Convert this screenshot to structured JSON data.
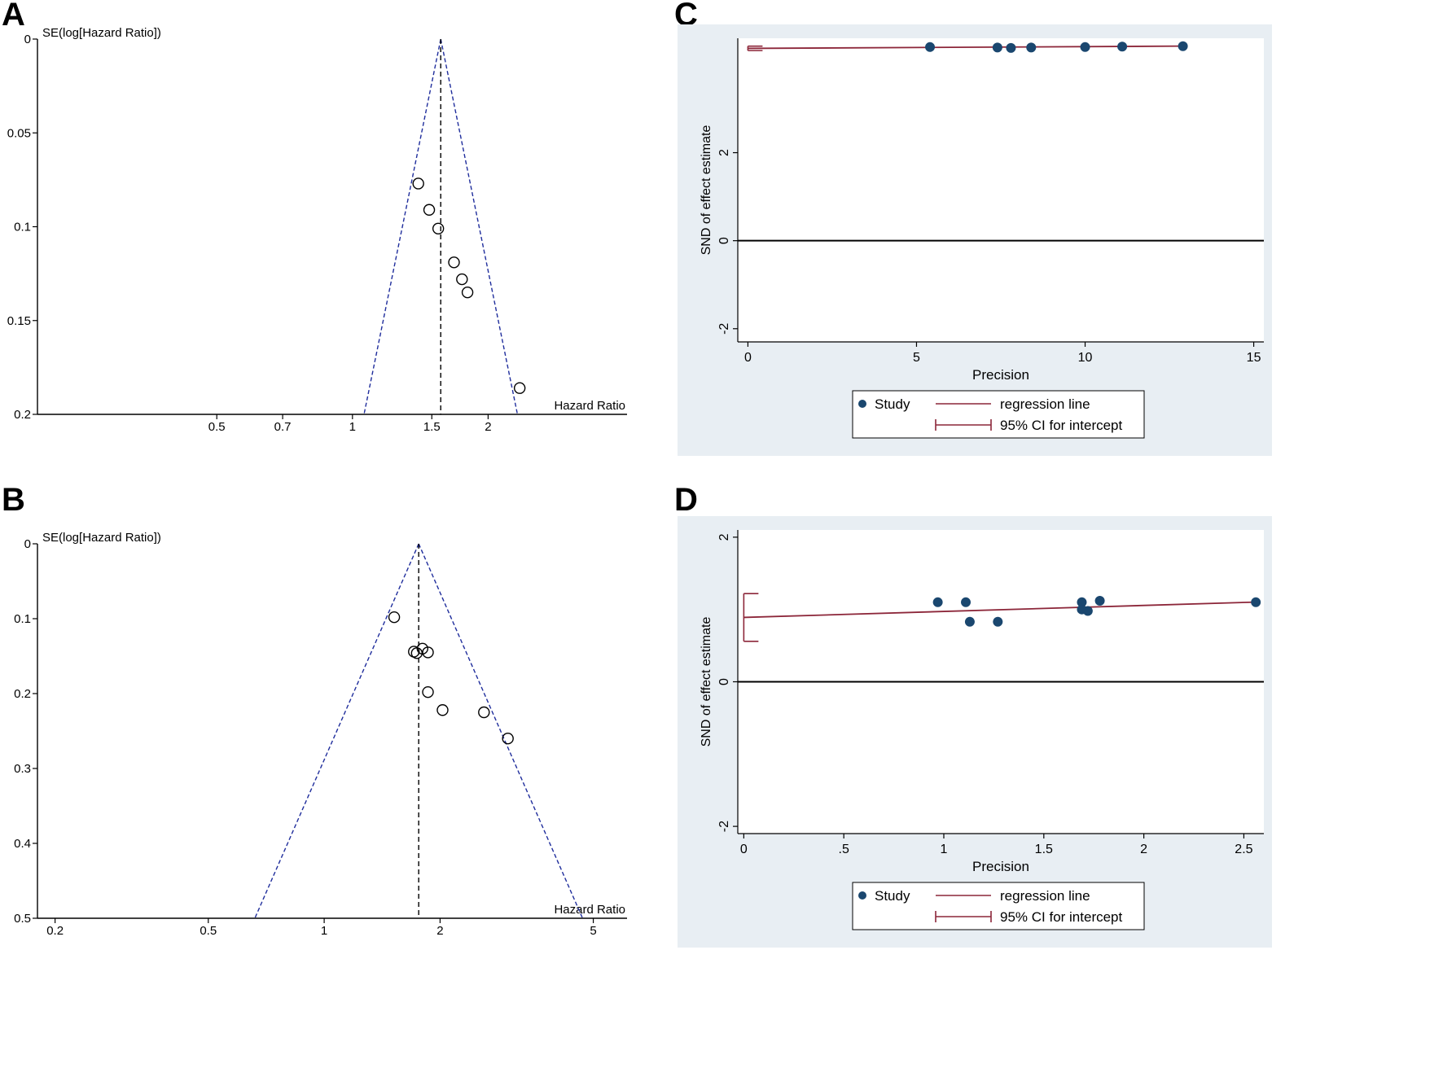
{
  "chart_data": [
    {
      "type": "scatter",
      "panel": "A",
      "subtype": "funnel",
      "ylabel": "SE(log[Hazard Ratio])",
      "xlabel": "Hazard Ratio",
      "x_scale": "log",
      "y_reversed": true,
      "xlim": [
        0.2,
        4
      ],
      "ylim": [
        0,
        0.2
      ],
      "x_ticks": [
        0.5,
        0.7,
        1,
        1.5,
        2
      ],
      "x_tick_labels": [
        "0.5",
        "0.7",
        "1",
        "1.5",
        "2"
      ],
      "y_ticks": [
        0,
        0.05,
        0.1,
        0.15,
        0.2
      ],
      "y_tick_labels": [
        "0",
        "0.05",
        "0.1",
        "0.15",
        "0.2"
      ],
      "pooled_hr": 1.57,
      "points": [
        {
          "hr": 1.4,
          "se": 0.077
        },
        {
          "hr": 1.48,
          "se": 0.091
        },
        {
          "hr": 1.55,
          "se": 0.101
        },
        {
          "hr": 1.68,
          "se": 0.119
        },
        {
          "hr": 1.75,
          "se": 0.128
        },
        {
          "hr": 1.8,
          "se": 0.135
        },
        {
          "hr": 2.35,
          "se": 0.186
        }
      ]
    },
    {
      "type": "scatter",
      "panel": "B",
      "subtype": "funnel",
      "ylabel": "SE(log[Hazard Ratio])",
      "xlabel": "Hazard Ratio",
      "x_scale": "log",
      "y_reversed": true,
      "xlim": [
        0.18,
        6
      ],
      "ylim": [
        0,
        0.5
      ],
      "x_ticks": [
        0.2,
        0.5,
        1,
        2,
        5
      ],
      "x_tick_labels": [
        "0.2",
        "0.5",
        "1",
        "2",
        "5"
      ],
      "y_ticks": [
        0,
        0.1,
        0.2,
        0.3,
        0.4,
        0.5
      ],
      "y_tick_labels": [
        "0",
        "0.1",
        "0.2",
        "0.3",
        "0.4",
        "0.5"
      ],
      "pooled_hr": 1.76,
      "points": [
        {
          "hr": 1.52,
          "se": 0.098
        },
        {
          "hr": 1.71,
          "se": 0.144
        },
        {
          "hr": 1.74,
          "se": 0.146
        },
        {
          "hr": 1.8,
          "se": 0.14
        },
        {
          "hr": 1.86,
          "se": 0.145
        },
        {
          "hr": 1.86,
          "se": 0.198
        },
        {
          "hr": 2.03,
          "se": 0.222
        },
        {
          "hr": 2.6,
          "se": 0.225
        },
        {
          "hr": 3.0,
          "se": 0.26
        }
      ]
    },
    {
      "type": "scatter",
      "panel": "C",
      "subtype": "egger",
      "xlabel": "Precision",
      "ylabel": "SND of effect estimate",
      "xlim": [
        -0.3,
        15.3
      ],
      "ylim": [
        -2.3,
        4.6
      ],
      "x_ticks": [
        0,
        5,
        10,
        15
      ],
      "x_tick_labels": [
        "0",
        "5",
        "10",
        "15"
      ],
      "y_ticks": [
        -2,
        0,
        2
      ],
      "y_tick_labels": [
        "-2",
        "0",
        "2"
      ],
      "zero_line": 0,
      "regression": {
        "intercept": 4.37,
        "slope": 0.004
      },
      "ci_intercept": [
        4.32,
        4.42
      ],
      "points": [
        {
          "x": 5.4,
          "y": 4.4
        },
        {
          "x": 7.4,
          "y": 4.39
        },
        {
          "x": 7.8,
          "y": 4.38
        },
        {
          "x": 8.4,
          "y": 4.39
        },
        {
          "x": 10.0,
          "y": 4.4
        },
        {
          "x": 11.1,
          "y": 4.41
        },
        {
          "x": 12.9,
          "y": 4.42
        }
      ],
      "legend": {
        "study": "Study",
        "regression": "regression line",
        "ci": "95% CI for intercept"
      }
    },
    {
      "type": "scatter",
      "panel": "D",
      "subtype": "egger",
      "xlabel": "Precision",
      "ylabel": "SND of effect estimate",
      "xlim": [
        -0.03,
        2.6
      ],
      "ylim": [
        -2.1,
        2.1
      ],
      "x_ticks": [
        0,
        0.5,
        1,
        1.5,
        2,
        2.5
      ],
      "x_tick_labels": [
        "0",
        ".5",
        "1",
        "1.5",
        "2",
        "2.5"
      ],
      "y_ticks": [
        -2,
        0,
        2
      ],
      "y_tick_labels": [
        "-2",
        "0",
        "2"
      ],
      "zero_line": 0,
      "regression": {
        "intercept": 0.89,
        "slope": 0.083
      },
      "ci_intercept": [
        0.56,
        1.22
      ],
      "points": [
        {
          "x": 0.97,
          "y": 1.1
        },
        {
          "x": 1.11,
          "y": 1.1
        },
        {
          "x": 1.13,
          "y": 0.83
        },
        {
          "x": 1.27,
          "y": 0.83
        },
        {
          "x": 1.69,
          "y": 1.1
        },
        {
          "x": 1.69,
          "y": 1.0
        },
        {
          "x": 1.72,
          "y": 0.98
        },
        {
          "x": 1.78,
          "y": 1.12
        },
        {
          "x": 2.56,
          "y": 1.1
        }
      ],
      "legend": {
        "study": "Study",
        "regression": "regression line",
        "ci": "95% CI for intercept"
      }
    }
  ]
}
